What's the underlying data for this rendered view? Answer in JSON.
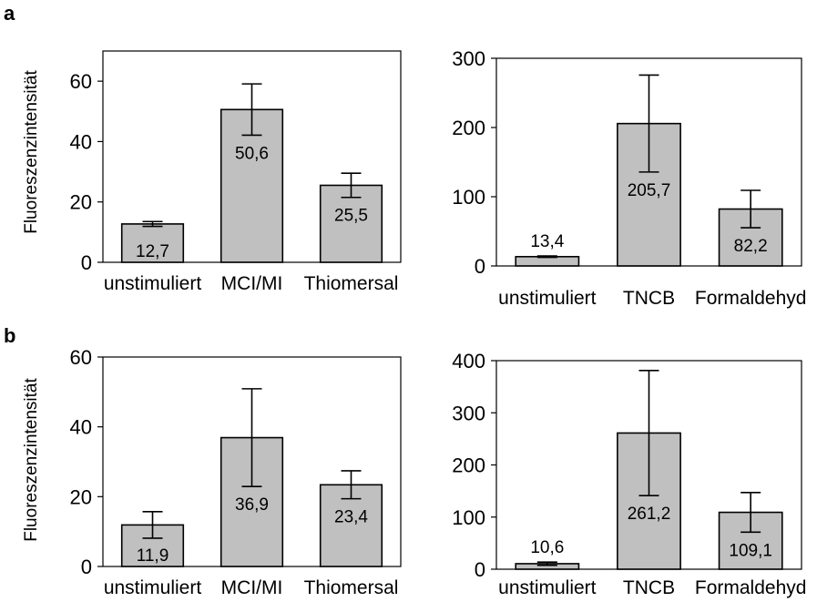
{
  "panels": [
    {
      "letter": "a",
      "ylabel": "Fluoreszenzintensität"
    },
    {
      "letter": "b",
      "ylabel": "Fluoreszenzintensität"
    }
  ],
  "colors": {
    "bar_fill": "#c0c0c0",
    "bar_stroke": "#000000",
    "error_bar": "#000000"
  },
  "chart_data": [
    {
      "type": "bar",
      "panel": "a",
      "position": "left",
      "title": "",
      "xlabel": "",
      "ylabel": "Fluoreszenzintensität",
      "categories": [
        "unstimuliert",
        "MCI/MI",
        "Thiomersal"
      ],
      "values": [
        12.7,
        50.6,
        25.5
      ],
      "value_labels": [
        "12,7",
        "50,6",
        "25,5"
      ],
      "errors": [
        0.8,
        8.5,
        4.0
      ],
      "ylim": [
        0,
        70
      ],
      "yticks": [
        0,
        20,
        40,
        60
      ],
      "grid": false,
      "legend": "none"
    },
    {
      "type": "bar",
      "panel": "a",
      "position": "right",
      "title": "",
      "xlabel": "",
      "ylabel": "",
      "categories": [
        "unstimuliert",
        "TNCB",
        "Formaldehyd"
      ],
      "values": [
        13.4,
        205.7,
        82.2
      ],
      "value_labels": [
        "13,4",
        "205,7",
        "82,2"
      ],
      "errors": [
        1.0,
        70.0,
        27.0
      ],
      "ylim": [
        0,
        300
      ],
      "yticks": [
        0,
        100,
        200,
        300
      ],
      "grid": false,
      "legend": "none"
    },
    {
      "type": "bar",
      "panel": "b",
      "position": "left",
      "title": "",
      "xlabel": "",
      "ylabel": "Fluoreszenzintensität",
      "categories": [
        "unstimuliert",
        "MCI/MI",
        "Thiomersal"
      ],
      "values": [
        11.9,
        36.9,
        23.4
      ],
      "value_labels": [
        "11,9",
        "36,9",
        "23,4"
      ],
      "errors": [
        3.8,
        14.0,
        4.0
      ],
      "ylim": [
        0,
        60
      ],
      "yticks": [
        0,
        20,
        40,
        60
      ],
      "grid": false,
      "legend": "none"
    },
    {
      "type": "bar",
      "panel": "b",
      "position": "right",
      "title": "",
      "xlabel": "",
      "ylabel": "",
      "categories": [
        "unstimuliert",
        "TNCB",
        "Formaldehyd"
      ],
      "values": [
        10.6,
        261.2,
        109.1
      ],
      "value_labels": [
        "10,6",
        "261,2",
        "109,1"
      ],
      "errors": [
        3.0,
        120.0,
        38.0
      ],
      "ylim": [
        0,
        400
      ],
      "yticks": [
        0,
        100,
        200,
        300,
        400
      ],
      "grid": false,
      "legend": "none"
    }
  ]
}
